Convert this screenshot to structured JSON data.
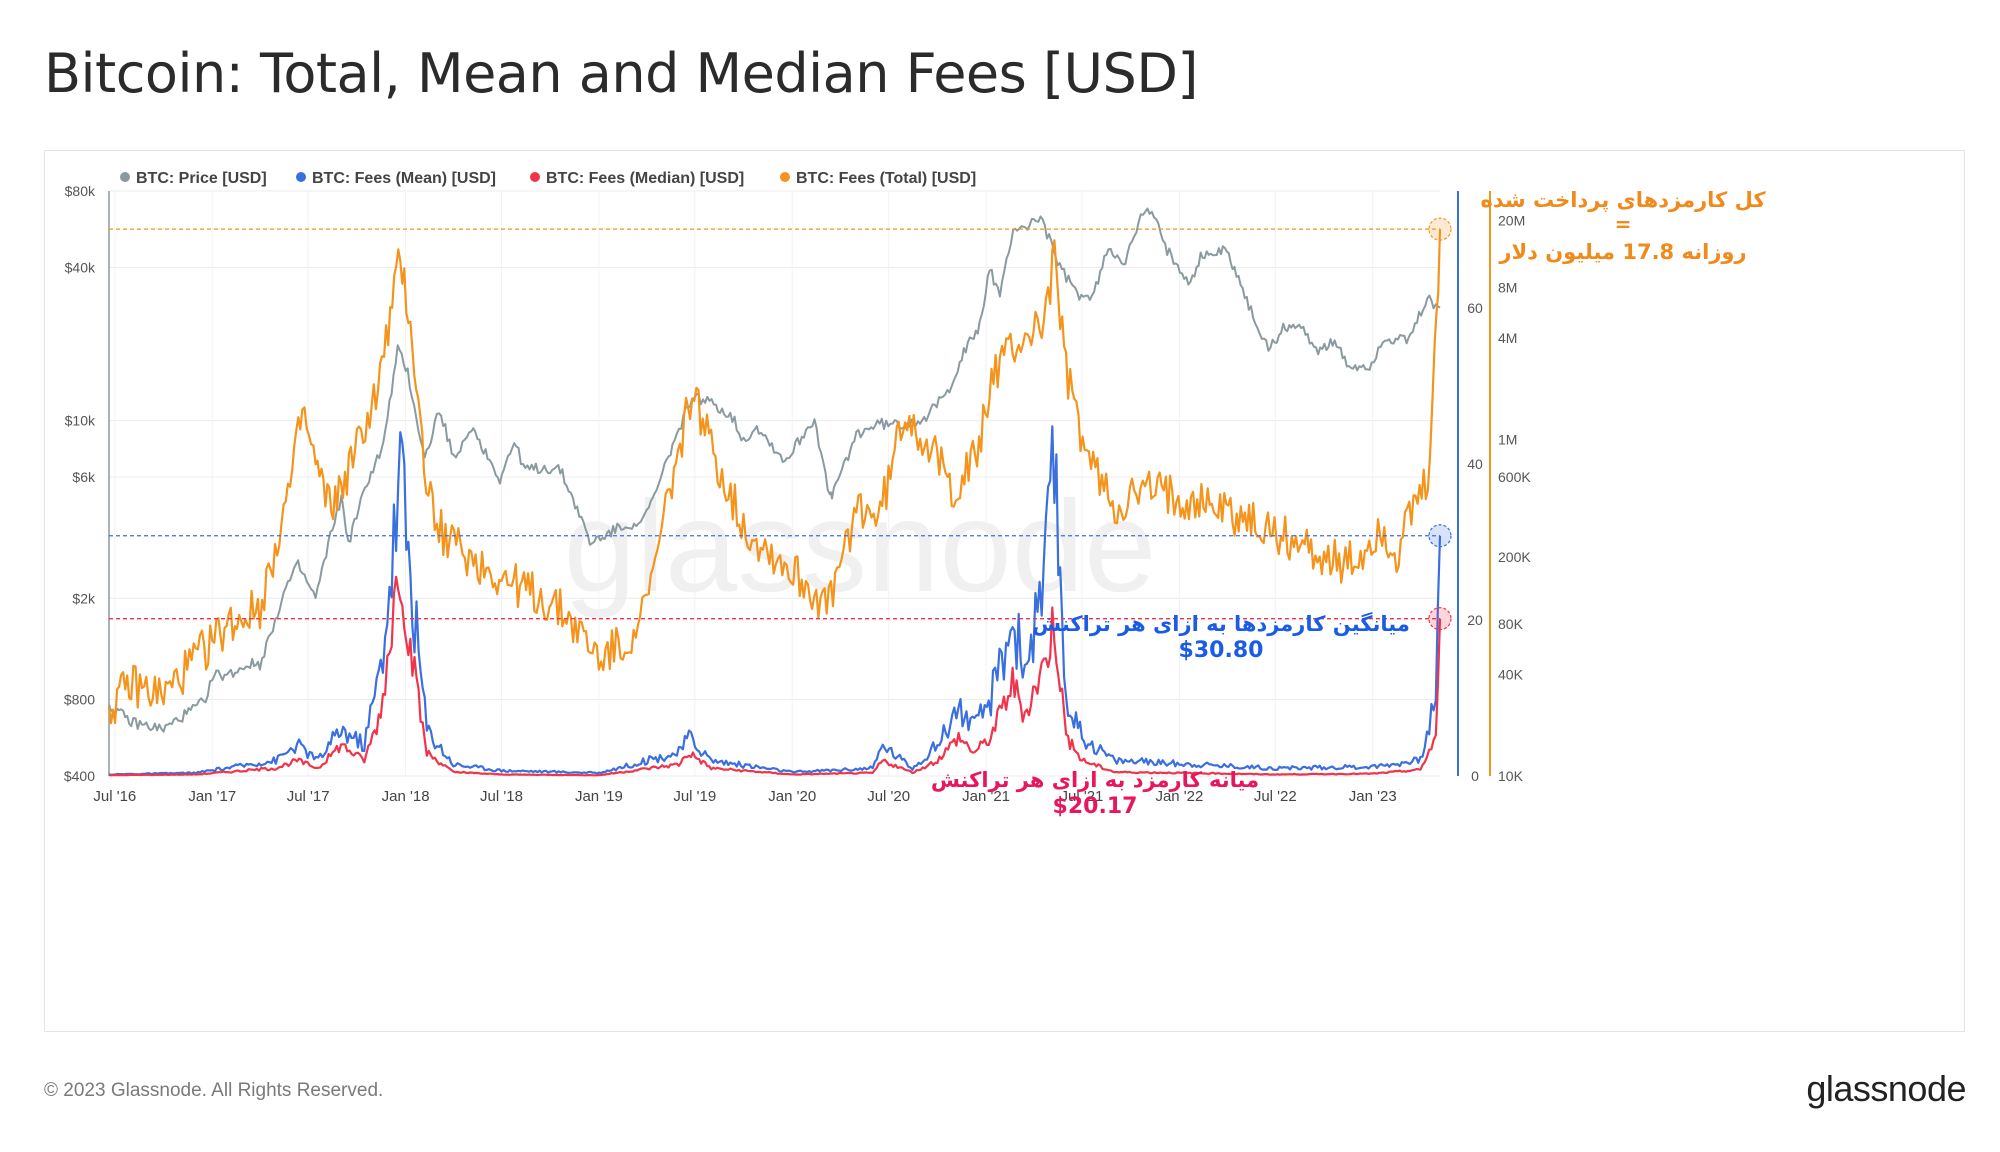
{
  "title": "Bitcoin: Total, Mean and Median Fees [USD]",
  "footer": {
    "copyright": "© 2023 Glassnode. All Rights Reserved.",
    "logo": "glassnode"
  },
  "watermark": "glassnode",
  "colors": {
    "price": "#8a9aa0",
    "mean": "#3a6fe0",
    "median": "#f0344b",
    "total": "#f4941c",
    "ann_total": "#f08a1a",
    "ann_mean": "#1a5ce6",
    "ann_median": "#e8175d"
  },
  "chart_data": {
    "type": "line",
    "legend_position": "top-left",
    "grid": true,
    "legend": [
      {
        "key": "price",
        "label": "BTC: Price [USD]"
      },
      {
        "key": "mean",
        "label": "BTC: Fees (Mean) [USD]"
      },
      {
        "key": "median",
        "label": "BTC: Fees (Median) [USD]"
      },
      {
        "key": "total",
        "label": "BTC: Fees (Total) [USD]"
      }
    ],
    "x_ticks": [
      "Jul '16",
      "Jan '17",
      "Jul '17",
      "Jan '18",
      "Jul '18",
      "Jan '19",
      "Jul '19",
      "Jan '20",
      "Jul '20",
      "Jan '21",
      "Jul '21",
      "Jan '22",
      "Jul '22",
      "Jan '23"
    ],
    "x_range": [
      "2016-06-20",
      "2023-05-08"
    ],
    "y_left": {
      "scale": "log",
      "range": [
        400,
        80000
      ],
      "ticks": [
        "$80k",
        "$40k",
        "$10k",
        "$6k",
        "$2k",
        "$800",
        "$400"
      ],
      "tick_values": [
        80000,
        40000,
        10000,
        6000,
        2000,
        800,
        400
      ]
    },
    "y_mid": {
      "scale": "linear",
      "range": [
        0,
        75
      ],
      "ticks": [
        "60",
        "40",
        "20",
        "0"
      ],
      "tick_values": [
        60,
        40,
        20,
        0
      ]
    },
    "y_right": {
      "scale": "log",
      "range": [
        10000,
        30000000
      ],
      "ticks": [
        "20M",
        "8M",
        "4M",
        "1M",
        "600K",
        "200K",
        "80K",
        "40K",
        "10K"
      ],
      "tick_values": [
        20000000,
        8000000,
        4000000,
        1000000,
        600000,
        200000,
        80000,
        40000,
        10000
      ]
    },
    "series": [
      {
        "name": "BTC: Price [USD]",
        "key": "price",
        "axis": "left",
        "x": [
          "2016-06-20",
          "2016-08-01",
          "2016-10-01",
          "2016-12-15",
          "2017-01-05",
          "2017-02-01",
          "2017-03-10",
          "2017-04-01",
          "2017-05-20",
          "2017-06-12",
          "2017-07-15",
          "2017-08-20",
          "2017-09-02",
          "2017-09-15",
          "2017-10-20",
          "2017-11-20",
          "2017-12-17",
          "2018-01-05",
          "2018-02-06",
          "2018-03-05",
          "2018-04-06",
          "2018-05-05",
          "2018-06-28",
          "2018-07-25",
          "2018-08-15",
          "2018-09-20",
          "2018-10-20",
          "2018-11-25",
          "2018-12-15",
          "2019-01-20",
          "2019-02-20",
          "2019-03-25",
          "2019-04-20",
          "2019-05-20",
          "2019-06-26",
          "2019-08-10",
          "2019-09-10",
          "2019-10-01",
          "2019-10-26",
          "2019-12-18",
          "2020-02-12",
          "2020-03-12",
          "2020-03-16",
          "2020-05-01",
          "2020-06-10",
          "2020-07-25",
          "2020-09-10",
          "2020-10-20",
          "2020-11-20",
          "2020-12-20",
          "2021-01-08",
          "2021-01-27",
          "2021-02-21",
          "2021-03-20",
          "2021-04-14",
          "2021-05-20",
          "2021-06-22",
          "2021-07-20",
          "2021-08-20",
          "2021-09-10",
          "2021-09-21",
          "2021-10-20",
          "2021-11-10",
          "2021-12-05",
          "2022-01-22",
          "2022-02-10",
          "2022-03-28",
          "2022-04-15",
          "2022-05-12",
          "2022-06-18",
          "2022-07-20",
          "2022-08-15",
          "2022-09-20",
          "2022-10-25",
          "2022-11-09",
          "2022-11-21",
          "2022-12-30",
          "2023-01-20",
          "2023-03-10",
          "2023-04-14",
          "2023-05-08"
        ],
        "values": [
          760,
          650,
          610,
          780,
          1000,
          1000,
          1100,
          1100,
          2200,
          2700,
          2000,
          4100,
          4900,
          3300,
          5700,
          8000,
          19000,
          15500,
          7000,
          11000,
          6900,
          9500,
          5900,
          8200,
          6400,
          6500,
          6400,
          4300,
          3300,
          3600,
          3900,
          4000,
          5300,
          8000,
          12500,
          11500,
          10300,
          8300,
          9500,
          6900,
          10200,
          4900,
          5100,
          8800,
          9700,
          9600,
          10300,
          12900,
          18500,
          23500,
          40000,
          30500,
          57000,
          58000,
          63500,
          40000,
          31500,
          30000,
          48000,
          44000,
          42000,
          63000,
          67000,
          48000,
          35000,
          44000,
          47000,
          40000,
          28000,
          19000,
          23500,
          23500,
          19000,
          20500,
          17000,
          16200,
          16500,
          21000,
          20500,
          30300,
          27800
        ]
      },
      {
        "name": "BTC: Fees (Mean) [USD]",
        "key": "mean",
        "axis": "mid",
        "x": [
          "2016-06-20",
          "2016-12-01",
          "2017-05-01",
          "2017-06-10",
          "2017-07-20",
          "2017-09-01",
          "2017-10-15",
          "2017-11-15",
          "2017-12-10",
          "2017-12-22",
          "2018-01-10",
          "2018-02-10",
          "2018-04-01",
          "2018-07-01",
          "2019-01-01",
          "2019-06-01",
          "2019-06-20",
          "2019-08-01",
          "2020-01-01",
          "2020-06-01",
          "2020-06-20",
          "2020-08-15",
          "2020-10-01",
          "2020-11-10",
          "2020-12-10",
          "2021-01-10",
          "2021-02-20",
          "2021-03-15",
          "2021-04-20",
          "2021-05-10",
          "2021-06-01",
          "2021-07-01",
          "2021-09-01",
          "2022-01-01",
          "2022-07-01",
          "2023-01-01",
          "2023-04-01",
          "2023-04-30",
          "2023-05-08"
        ],
        "values": [
          0.2,
          0.4,
          2,
          4,
          2,
          6,
          4,
          14,
          30,
          40,
          26,
          6,
          1.5,
          0.7,
          0.4,
          3,
          5,
          2,
          0.5,
          1,
          4,
          1,
          4,
          9,
          6,
          10,
          20,
          14,
          24,
          40,
          10,
          5,
          2,
          1.6,
          1,
          1.2,
          2,
          10,
          30.8
        ]
      },
      {
        "name": "BTC: Fees (Median) [USD]",
        "key": "median",
        "axis": "mid",
        "x": [
          "2016-06-20",
          "2016-12-01",
          "2017-05-01",
          "2017-06-10",
          "2017-07-20",
          "2017-09-01",
          "2017-10-15",
          "2017-11-15",
          "2017-12-10",
          "2017-12-22",
          "2018-01-10",
          "2018-02-10",
          "2018-04-01",
          "2018-07-01",
          "2019-01-01",
          "2019-06-01",
          "2019-06-20",
          "2019-08-01",
          "2020-01-01",
          "2020-06-01",
          "2020-06-20",
          "2020-08-15",
          "2020-10-01",
          "2020-11-10",
          "2020-12-10",
          "2021-01-10",
          "2021-02-20",
          "2021-03-15",
          "2021-04-20",
          "2021-05-10",
          "2021-06-01",
          "2021-07-01",
          "2021-09-01",
          "2022-01-01",
          "2022-07-01",
          "2023-01-01",
          "2023-04-01",
          "2023-04-30",
          "2023-05-08"
        ],
        "values": [
          0.1,
          0.2,
          1,
          2,
          1,
          4,
          2,
          8,
          22,
          28,
          16,
          3,
          0.5,
          0.2,
          0.1,
          1.5,
          3,
          1,
          0.2,
          0.4,
          2,
          0.4,
          2,
          5,
          3,
          5,
          12,
          8,
          14,
          20,
          5,
          2,
          0.5,
          0.4,
          0.2,
          0.3,
          0.8,
          5,
          20.17
        ]
      },
      {
        "name": "BTC: Fees (Total) [USD]",
        "key": "total",
        "axis": "right",
        "x": [
          "2016-06-20",
          "2016-08-01",
          "2016-10-01",
          "2016-12-01",
          "2017-02-01",
          "2017-04-01",
          "2017-06-01",
          "2017-06-20",
          "2017-07-15",
          "2017-08-10",
          "2017-09-01",
          "2017-10-01",
          "2017-11-10",
          "2017-12-22",
          "2018-01-10",
          "2018-02-05",
          "2018-03-01",
          "2018-05-01",
          "2018-07-01",
          "2018-09-01",
          "2018-11-01",
          "2019-01-01",
          "2019-02-15",
          "2019-04-01",
          "2019-05-15",
          "2019-06-26",
          "2019-08-01",
          "2019-10-01",
          "2019-12-01",
          "2020-01-15",
          "2020-03-10",
          "2020-05-01",
          "2020-06-15",
          "2020-08-01",
          "2020-09-15",
          "2020-11-01",
          "2020-12-15",
          "2021-01-15",
          "2021-02-20",
          "2021-04-20",
          "2021-05-10",
          "2021-06-01",
          "2021-07-10",
          "2021-09-01",
          "2021-11-01",
          "2022-01-15",
          "2022-03-15",
          "2022-06-01",
          "2022-08-01",
          "2022-10-01",
          "2022-12-01",
          "2023-01-15",
          "2023-02-15",
          "2023-03-15",
          "2023-04-15",
          "2023-04-28",
          "2023-05-08"
        ],
        "values": [
          25000,
          35000,
          30000,
          50000,
          80000,
          100000,
          600000,
          1500000,
          700000,
          400000,
          500000,
          900000,
          2000000,
          12000000,
          5000000,
          700000,
          300000,
          200000,
          150000,
          120000,
          90000,
          50000,
          60000,
          100000,
          500000,
          2000000,
          900000,
          300000,
          200000,
          150000,
          100000,
          400000,
          350000,
          1500000,
          900000,
          500000,
          800000,
          2500000,
          3500000,
          5000000,
          12000000,
          2500000,
          800000,
          400000,
          500000,
          450000,
          400000,
          300000,
          250000,
          200000,
          180000,
          300000,
          200000,
          350000,
          550000,
          3000000,
          17800000
        ]
      }
    ],
    "reference_lines": [
      {
        "key": "total",
        "axis": "right",
        "value": 17800000
      },
      {
        "key": "mean",
        "axis": "mid",
        "value": 30.8
      },
      {
        "key": "median",
        "axis": "mid",
        "value": 20.17
      }
    ],
    "annotations": {
      "total_line1": "کل کارمزدهای پرداخت شده",
      "total_eq": "=",
      "total_line2": "روزانه 17.8 میلیون دلار",
      "mean_label": "میانگین کارمزدها به ازای هر تراکنش",
      "mean_value": "$30.80",
      "median_label": "میانه کارمزد به ازای هر تراکنش",
      "median_value": "$20.17"
    }
  }
}
